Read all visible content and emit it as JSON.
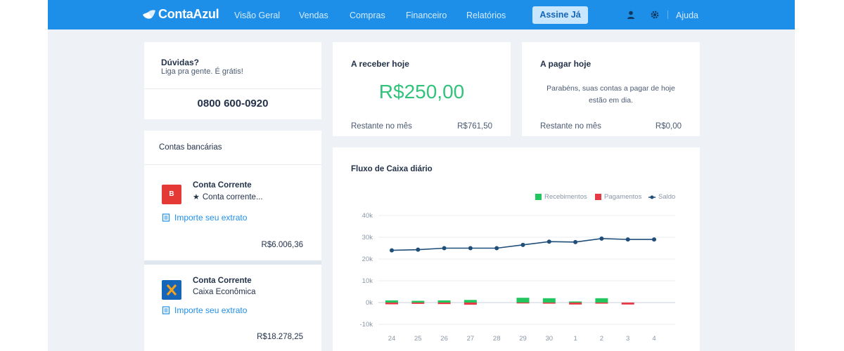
{
  "brand": {
    "name": "ContaAzul"
  },
  "nav": {
    "items": [
      "Visão Geral",
      "Vendas",
      "Compras",
      "Financeiro",
      "Relatórios"
    ],
    "cta_label": "Assine Já",
    "help_label": "Ajuda",
    "icons": [
      "user-icon",
      "gear-icon"
    ]
  },
  "support": {
    "title": "Dúvidas?",
    "subtitle": "Liga pra gente. É grátis!",
    "phone": "0800 600-0920"
  },
  "receivable": {
    "title": "A receber hoje",
    "amount": "R$250,00",
    "remaining_label": "Restante no mês",
    "remaining_value": "R$761,50"
  },
  "payable": {
    "title": "A pagar hoje",
    "message": "Parabéns, suas contas a pagar de hoje estão em dia.",
    "remaining_label": "Restante no mês",
    "remaining_value": "R$0,00"
  },
  "accounts": {
    "title": "Contas bancárias",
    "items": [
      {
        "type": "Conta Corrente",
        "name": "Conta corrente...",
        "link": "Importe seu extrato",
        "balance": "R$6.006,36",
        "logo_color": "#e53935",
        "logo_letter": "B",
        "starred": true
      },
      {
        "type": "Conta Corrente",
        "name": "Caixa Econômica",
        "link": "Importe seu extrato",
        "balance": "R$18.278,25",
        "logo_color": "#1565b8",
        "logo_letter": "",
        "starred": false
      }
    ]
  },
  "colors": {
    "accent": "#1e8fe8",
    "green": "#22c55e",
    "red": "#e53945",
    "navy": "#1f4e79"
  },
  "chart_data": {
    "type": "line",
    "title": "Fluxo de Caixa diário",
    "categories": [
      "24",
      "25",
      "26",
      "27",
      "28",
      "29",
      "30",
      "1",
      "2",
      "3",
      "4"
    ],
    "y_ticks": [
      "40k",
      "30k",
      "20k",
      "10k",
      "0k",
      "-10k"
    ],
    "ylim": [
      -10000,
      40000
    ],
    "legend": {
      "placement": "top-right"
    },
    "series": [
      {
        "name": "Recebimentos",
        "kind": "bar",
        "values": [
          1000,
          800,
          1000,
          1200,
          0,
          2200,
          2000,
          500,
          2000,
          0,
          0
        ]
      },
      {
        "name": "Pagamentos",
        "kind": "bar",
        "values": [
          -800,
          -600,
          -700,
          -1000,
          0,
          -400,
          -500,
          -900,
          -500,
          -900,
          0
        ]
      },
      {
        "name": "Saldo",
        "kind": "line",
        "values": [
          24000,
          24300,
          25000,
          25000,
          25000,
          26500,
          28000,
          27800,
          29400,
          29000,
          29000
        ]
      }
    ]
  }
}
